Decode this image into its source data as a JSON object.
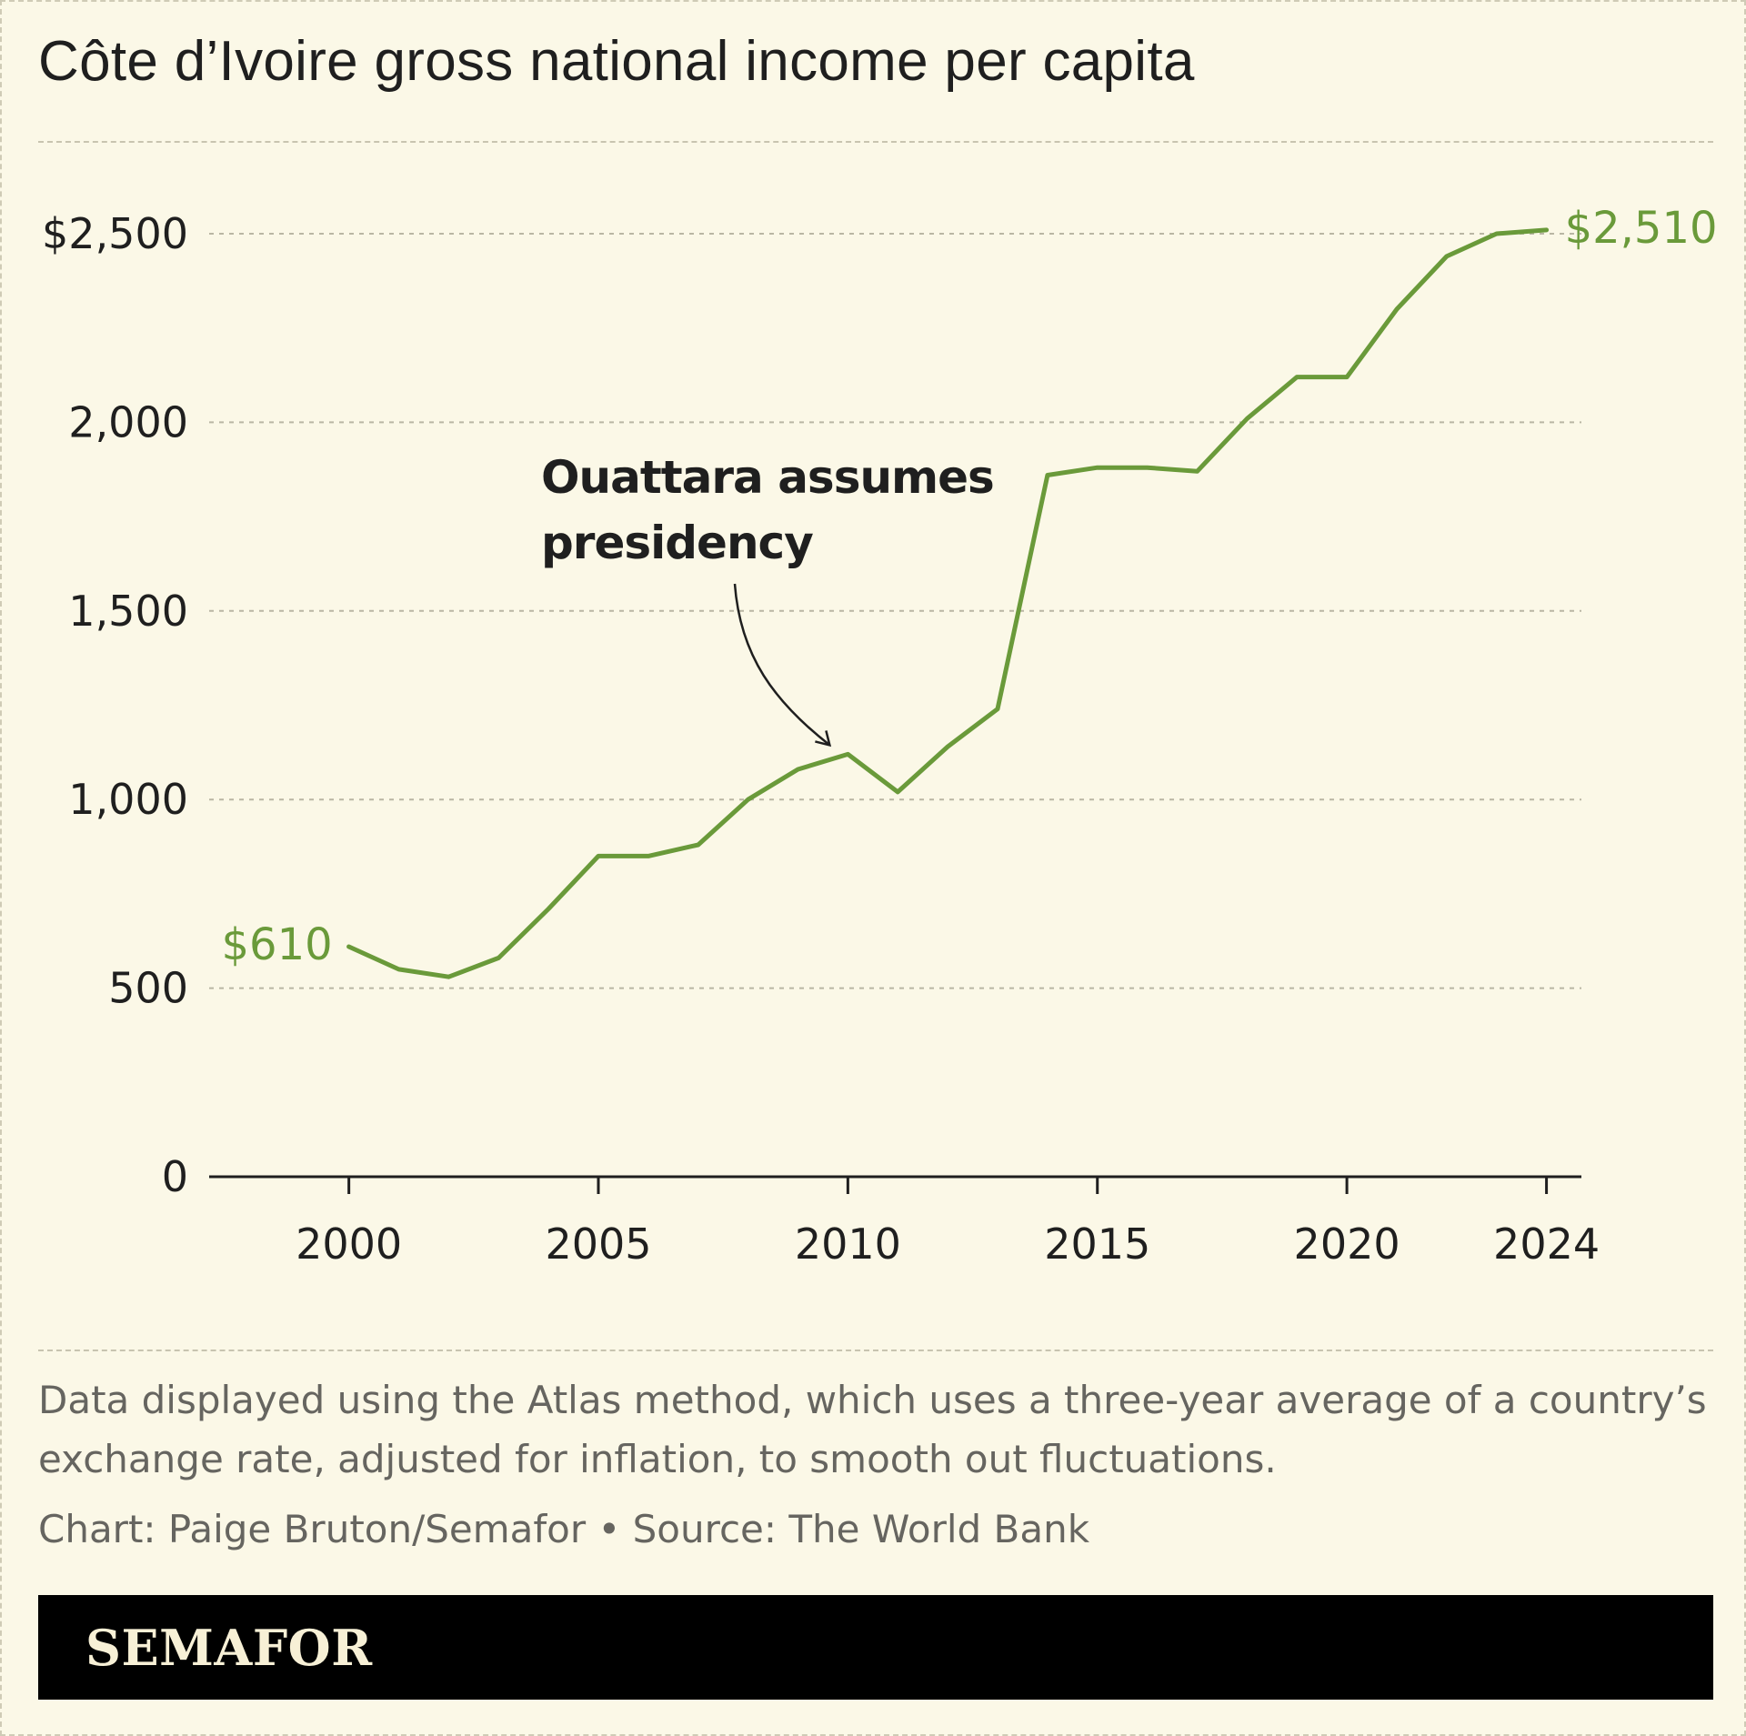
{
  "title": "Côte d’Ivoire gross national income per capita",
  "note": "Data displayed using the Atlas method, which uses a three-year average of a country’s exchange rate, adjusted for inflation, to smooth out fluctuations.",
  "credit": "Chart: Paige Bruton/Semafor • Source: The World Bank",
  "brand": "SEMAFOR",
  "colors": {
    "line": "#6a9a3a",
    "text": "#1f1f1f",
    "muted": "#666560",
    "background": "#fbf8e7"
  },
  "chart_data": {
    "type": "line",
    "title": "Côte d’Ivoire gross national income per capita",
    "xlabel": "",
    "ylabel": "",
    "xlim": [
      1997.2,
      2024.7
    ],
    "ylim": [
      0,
      2500
    ],
    "grid": true,
    "x_ticks": [
      2000,
      2005,
      2010,
      2015,
      2020,
      2024
    ],
    "x_tick_labels": [
      "2000",
      "2005",
      "2010",
      "2015",
      "2020",
      "2024"
    ],
    "y_ticks": [
      0,
      500,
      1000,
      1500,
      2000,
      2500
    ],
    "y_tick_labels": [
      "0",
      "500",
      "1,000",
      "1,500",
      "2,000",
      "$2,500"
    ],
    "series": [
      {
        "x": [
          2000,
          2001,
          2002,
          2003,
          2004,
          2005,
          2006,
          2007,
          2008,
          2009,
          2010,
          2011,
          2012,
          2013,
          2014,
          2015,
          2016,
          2017,
          2018,
          2019,
          2020,
          2021,
          2022,
          2023,
          2024
        ],
        "values": [
          610,
          550,
          530,
          580,
          710,
          850,
          850,
          880,
          1000,
          1080,
          1120,
          1020,
          1140,
          1240,
          1860,
          1880,
          1880,
          1870,
          2010,
          2120,
          2120,
          2300,
          2440,
          2500,
          2510
        ]
      }
    ],
    "annotations": [
      {
        "text": "$610",
        "x": 2000,
        "y": 610
      },
      {
        "text": "$2,510",
        "x": 2024,
        "y": 2510
      },
      {
        "text_lines": [
          "Ouattara assumes",
          "presidency"
        ],
        "x": 2010,
        "y": 1120
      }
    ]
  }
}
